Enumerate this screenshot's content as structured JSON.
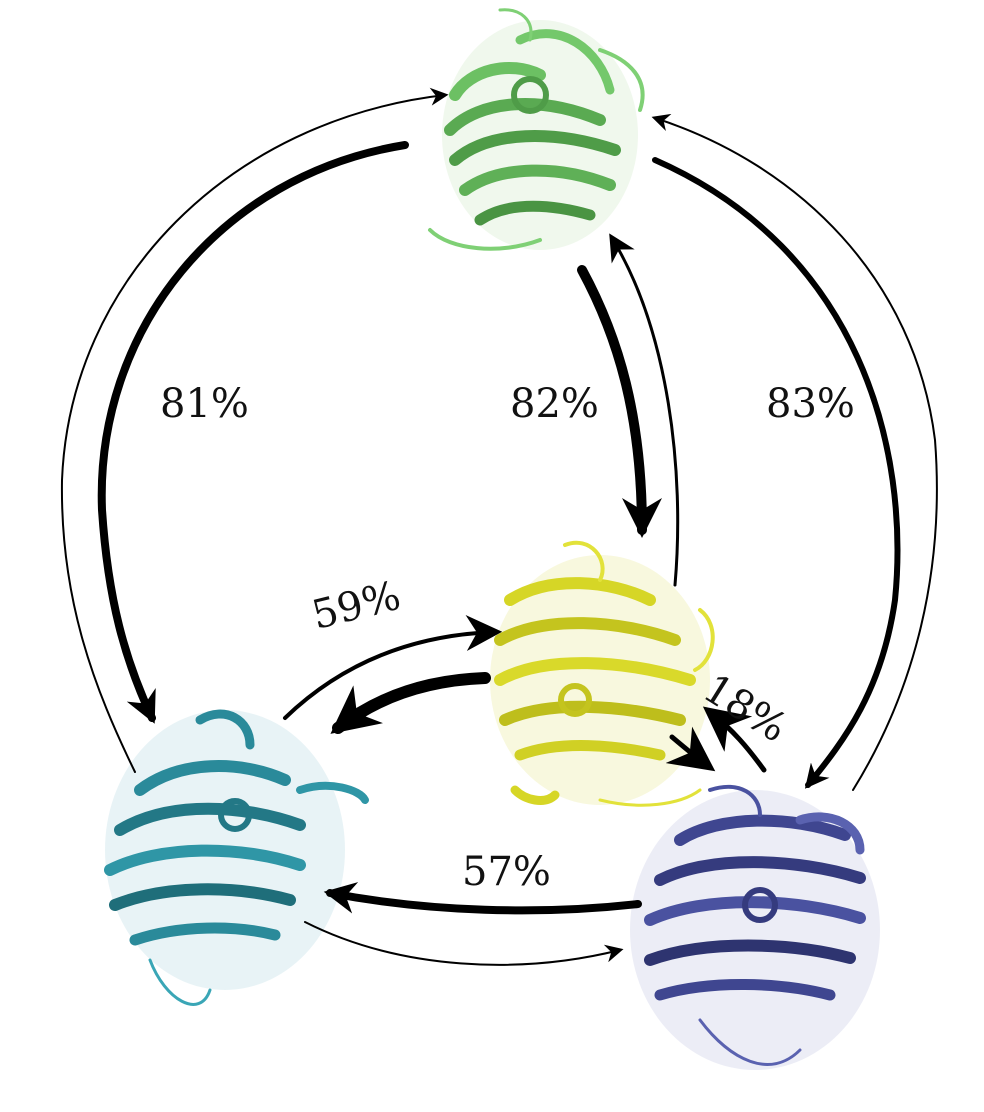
{
  "labels": {
    "top_to_left": "81%",
    "top_to_center": "82%",
    "top_to_right": "83%",
    "center_to_left": "59%",
    "center_to_right": "18%",
    "right_to_left": "57%"
  },
  "colors": {
    "protein_top": "#63b85a",
    "protein_center": "#d9d92a",
    "protein_left": "#2a8a9a",
    "protein_right": "#3f4690",
    "arrow": "#000000"
  }
}
